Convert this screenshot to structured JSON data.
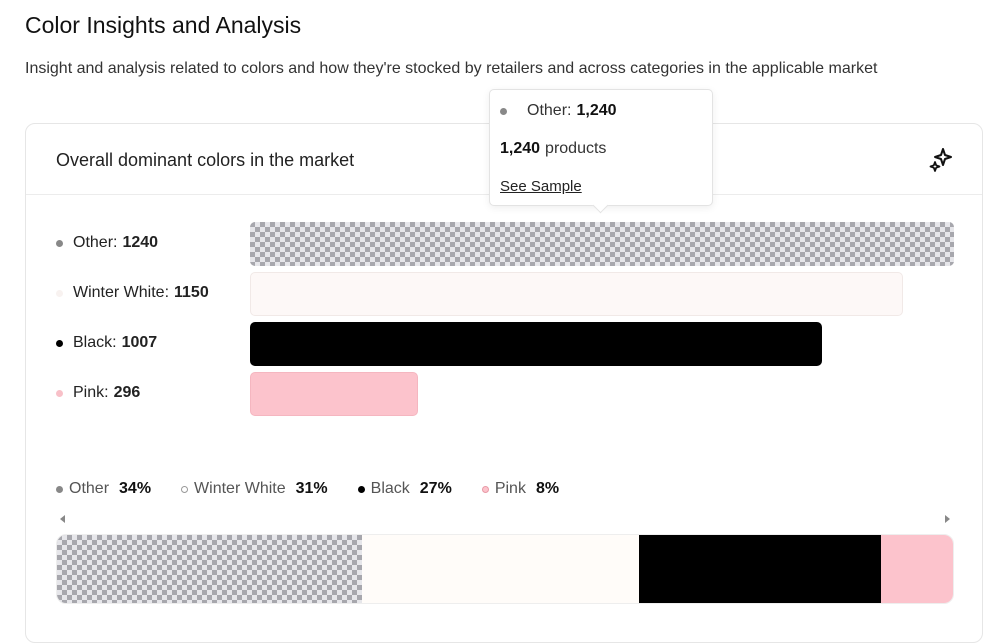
{
  "header": {
    "title": "Color Insights and Analysis",
    "subtitle": "Insight and analysis related to colors and how they're stocked by retailers and across categories in the applicable market"
  },
  "card": {
    "title": "Overall dominant colors in the market",
    "icon": "sparkle-icon"
  },
  "tooltip": {
    "series_label": "Other:",
    "series_value": "1,240",
    "count_value": "1,240",
    "count_unit": "products",
    "link_label": "See Sample"
  },
  "chart_data": [
    {
      "type": "bar",
      "orientation": "horizontal",
      "title": "Overall dominant colors in the market",
      "categories": [
        "Other",
        "Winter White",
        "Black",
        "Pink"
      ],
      "values": [
        1240,
        1150,
        1007,
        296
      ],
      "labels": [
        "Other:",
        "Winter White:",
        "Black:",
        "Pink:"
      ],
      "value_labels": [
        "1240",
        "1150",
        "1007",
        "296"
      ],
      "colors": [
        "#a7a7ad",
        "#fdf8f7",
        "#000000",
        "#fcc3cc"
      ],
      "dot_colors": [
        "#888888",
        "#f8f2f0",
        "#000000",
        "#f8c0c8"
      ],
      "patterns": [
        "checker",
        "none",
        "none",
        "none"
      ],
      "xlim": [
        0,
        1240
      ]
    },
    {
      "type": "bar",
      "orientation": "stacked-100",
      "categories": [
        "Other",
        "Winter White",
        "Black",
        "Pink"
      ],
      "values": [
        34,
        31,
        27,
        8
      ],
      "labels": [
        "Other",
        "Winter White",
        "Black",
        "Pink"
      ],
      "value_labels": [
        "34%",
        "31%",
        "27%",
        "8%"
      ],
      "colors": [
        "#a7a7ad",
        "#fffcf9",
        "#000000",
        "#fcc3cc"
      ],
      "legend_placement": "top"
    }
  ],
  "colors": {
    "other": "#a7a7ad",
    "winter_white": "#fdf8f7",
    "black": "#000000",
    "pink": "#fcc3cc"
  }
}
